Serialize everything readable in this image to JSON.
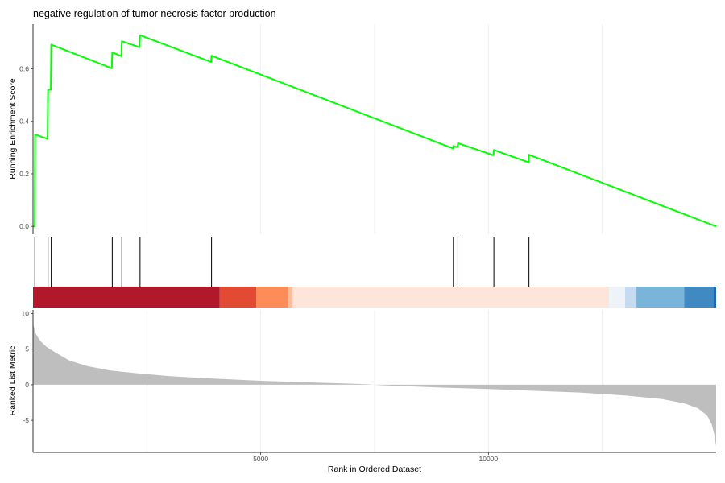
{
  "chart_data": {
    "type": "line",
    "title": "negative regulation of tumor necrosis factor production",
    "xlabel": "Rank in Ordered Dataset",
    "xlim": [
      0,
      15000
    ],
    "x_ticks": [
      5000,
      10000
    ],
    "x_tick_labels": [
      "5000",
      "10000"
    ],
    "grid": "vertical only, at 2500-step positions",
    "running_es": {
      "ylabel": "Running Enrichment Score",
      "ylim": [
        -0.03,
        0.77
      ],
      "y_ticks": [
        0.0,
        0.2,
        0.4,
        0.6
      ],
      "y_tick_labels": [
        "0.0",
        "0.2",
        "0.4",
        "0.6"
      ],
      "line_color": "#00ff00",
      "points": [
        [
          0,
          0.0
        ],
        [
          40,
          0.0
        ],
        [
          45,
          0.35
        ],
        [
          320,
          0.333
        ],
        [
          330,
          0.52
        ],
        [
          390,
          0.52
        ],
        [
          400,
          0.692
        ],
        [
          1730,
          0.602
        ],
        [
          1740,
          0.663
        ],
        [
          1940,
          0.648
        ],
        [
          1950,
          0.705
        ],
        [
          2340,
          0.682
        ],
        [
          2350,
          0.728
        ],
        [
          3910,
          0.626
        ],
        [
          3920,
          0.65
        ],
        [
          9220,
          0.297
        ],
        [
          9230,
          0.306
        ],
        [
          9320,
          0.302
        ],
        [
          9330,
          0.317
        ],
        [
          10110,
          0.271
        ],
        [
          10120,
          0.291
        ],
        [
          10880,
          0.244
        ],
        [
          10890,
          0.273
        ],
        [
          15000,
          0.0
        ]
      ]
    },
    "hits": [
      40,
      330,
      400,
      1740,
      1950,
      2350,
      3920,
      9230,
      9330,
      10120,
      10890
    ],
    "color_bar": {
      "segments": [
        {
          "from": 0,
          "to": 4100,
          "color": "#b2182b"
        },
        {
          "from": 4100,
          "to": 4900,
          "color": "#e34a33"
        },
        {
          "from": 4900,
          "to": 5600,
          "color": "#fc8d59"
        },
        {
          "from": 5600,
          "to": 5700,
          "color": "#fdbb9c"
        },
        {
          "from": 5700,
          "to": 12650,
          "color": "#fde5d9"
        },
        {
          "from": 12650,
          "to": 13000,
          "color": "#eef3f9"
        },
        {
          "from": 13000,
          "to": 13250,
          "color": "#c6dbef"
        },
        {
          "from": 13250,
          "to": 14300,
          "color": "#7ab4d8"
        },
        {
          "from": 14300,
          "to": 14940,
          "color": "#4189c1"
        },
        {
          "from": 14940,
          "to": 15000,
          "color": "#2166ac"
        }
      ]
    },
    "ranked_metric": {
      "ylabel": "Ranked List Metric",
      "ylim": [
        -9.5,
        10.5
      ],
      "y_ticks": [
        -5,
        0,
        5,
        10
      ],
      "y_tick_labels": [
        "-5",
        "0",
        "5",
        "10"
      ],
      "fill_color": "#bebebe",
      "points": [
        [
          0,
          8.6
        ],
        [
          50,
          7.3
        ],
        [
          150,
          6.2
        ],
        [
          300,
          5.3
        ],
        [
          500,
          4.5
        ],
        [
          800,
          3.4
        ],
        [
          1200,
          2.6
        ],
        [
          1700,
          2.0
        ],
        [
          2300,
          1.6
        ],
        [
          3000,
          1.2
        ],
        [
          4000,
          0.85
        ],
        [
          5000,
          0.55
        ],
        [
          6000,
          0.35
        ],
        [
          7000,
          0.15
        ],
        [
          7400,
          0.05
        ],
        [
          7600,
          -0.05
        ],
        [
          8000,
          -0.15
        ],
        [
          9000,
          -0.4
        ],
        [
          10000,
          -0.6
        ],
        [
          11000,
          -0.85
        ],
        [
          12000,
          -1.1
        ],
        [
          13000,
          -1.5
        ],
        [
          13800,
          -2.0
        ],
        [
          14300,
          -2.6
        ],
        [
          14600,
          -3.3
        ],
        [
          14800,
          -4.3
        ],
        [
          14900,
          -5.5
        ],
        [
          14960,
          -7.0
        ],
        [
          15000,
          -8.6
        ]
      ]
    }
  }
}
